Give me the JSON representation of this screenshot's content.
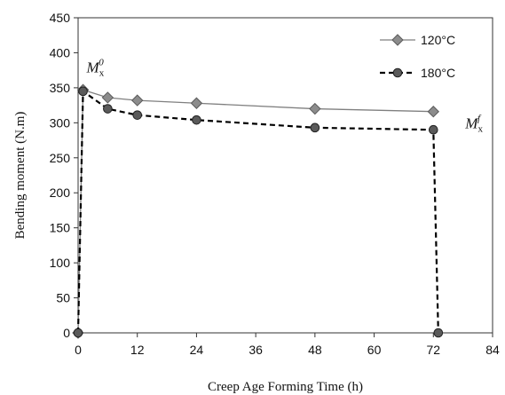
{
  "chart_data": {
    "type": "line",
    "title": "",
    "xlabel": "Creep Age Forming Time (h)",
    "ylabel": "Bending moment (N.m)",
    "xlim": [
      0,
      84
    ],
    "ylim": [
      0,
      450
    ],
    "xticks": [
      0,
      12,
      24,
      36,
      48,
      60,
      72,
      84
    ],
    "yticks": [
      0,
      50,
      100,
      150,
      200,
      250,
      300,
      350,
      400,
      450
    ],
    "grid": false,
    "legend_position": "top-right",
    "series": [
      {
        "name": "120°C",
        "style": "solid",
        "marker": "diamond",
        "color": "#7f7f7f",
        "x": [
          0,
          1,
          6,
          12,
          24,
          48,
          72
        ],
        "y": [
          0,
          347,
          336,
          332,
          328,
          320,
          316
        ]
      },
      {
        "name": "180°C",
        "style": "dashed",
        "marker": "circle",
        "color": "#000000",
        "x": [
          0,
          1,
          6,
          12,
          24,
          48,
          72,
          73
        ],
        "y": [
          0,
          345,
          320,
          311,
          304,
          293,
          290,
          0
        ]
      }
    ],
    "annotations": [
      {
        "base": "M",
        "sub": "x",
        "sup": "0",
        "x": 1,
        "y": 347
      },
      {
        "base": "M",
        "sub": "x",
        "sup": "f",
        "x": 72,
        "y": 316
      }
    ]
  }
}
